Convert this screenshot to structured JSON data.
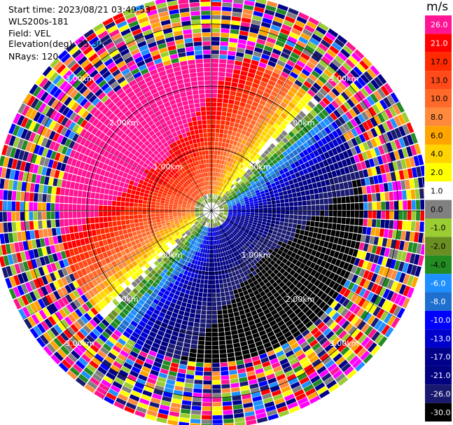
{
  "header": {
    "start_time": "Start time: 2023/08/21 03:49:53",
    "instrument": "WLS200s-181",
    "field": "Field: VEL",
    "elevation": "Elevation(deg): 35.30",
    "nrays": "NRays: 120"
  },
  "colorbar": {
    "unit": "m/s",
    "labels": [
      "26.0",
      "21.0",
      "17.0",
      "13.0",
      "10.0",
      "8.0",
      "6.0",
      "4.0",
      "2.0",
      "1.0",
      "0.0",
      "-1.0",
      "-2.0",
      "-4.0",
      "-6.0",
      "-8.0",
      "-10.0",
      "-13.0",
      "-17.0",
      "-21.0",
      "-26.0",
      "-30.0"
    ],
    "colors": [
      "#ff1493",
      "#ff0000",
      "#ff2a00",
      "#ff4a1a",
      "#ff6a2a",
      "#ff8a3c",
      "#ffa500",
      "#ffd400",
      "#ffff00",
      "#ffffff",
      "#808080",
      "#9acd32",
      "#6b8e23",
      "#228b22",
      "#1e90ff",
      "#1e6fd0",
      "#0000ff",
      "#0000cd",
      "#00008b",
      "#000080",
      "#191970",
      "#000000"
    ]
  },
  "chart_data": {
    "type": "heatmap",
    "subtype": "ppi-radial-velocity",
    "title": "",
    "field": "VEL",
    "unit": "m/s",
    "nrays": 120,
    "elevation_deg": 35.3,
    "range_rings_km": [
      1.0,
      2.0,
      3.0
    ],
    "ring_labels": [
      "1.00km",
      "2.00km",
      "3.00km"
    ],
    "vmin": -30.0,
    "vmax": 26.0,
    "pattern": "velocity dipole: approaching (-) toward south-east, receding (+) toward north-west; noisy clutter beyond ~2.4 km",
    "valid_range_km": 2.4,
    "max_range_km": 3.5
  }
}
